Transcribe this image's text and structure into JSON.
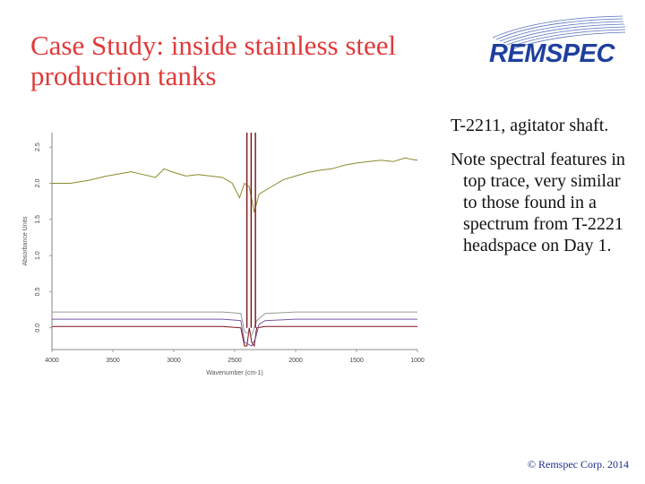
{
  "slide": {
    "title": "Case Study: inside stainless steel production tanks",
    "logo_text": "REMSPEC",
    "notes": [
      "T-2211, agitator shaft.",
      "Note spectral features in top trace, very similar to those found in a spectrum from T-2221 headspace on Day 1."
    ],
    "footer": "© Remspec Corp. 2014"
  },
  "colors": {
    "title": "#e03a3a",
    "logo": "#1e3f9e",
    "footer": "#1d2f8a",
    "series_top": "#8a8a2a",
    "series_red": "#7a0f14",
    "series_purple": "#7a5aa0",
    "series_grey": "#9a9a9a"
  },
  "chart_data": {
    "type": "line",
    "xlabel": "Wavenumber (cm-1)",
    "ylabel": "Absorbance Units",
    "xlim": [
      4000,
      1000
    ],
    "ylim": [
      -0.3,
      2.7
    ],
    "x_ticks": [
      "4000",
      "3500",
      "3000",
      "2500",
      "2000",
      "1500",
      "1000"
    ],
    "y_ticks": [
      "0.0",
      "0.5",
      "1.0",
      "1.5",
      "2.0",
      "2.5"
    ],
    "series": [
      {
        "color": "#8a8a2a",
        "points": [
          [
            4000,
            2.0
          ],
          [
            3850,
            2.0
          ],
          [
            3700,
            2.04
          ],
          [
            3550,
            2.1
          ],
          [
            3450,
            2.13
          ],
          [
            3350,
            2.16
          ],
          [
            3250,
            2.12
          ],
          [
            3150,
            2.08
          ],
          [
            3080,
            2.2
          ],
          [
            3000,
            2.15
          ],
          [
            2900,
            2.1
          ],
          [
            2800,
            2.12
          ],
          [
            2700,
            2.1
          ],
          [
            2600,
            2.08
          ],
          [
            2520,
            2.0
          ],
          [
            2460,
            1.8
          ],
          [
            2420,
            2.0
          ],
          [
            2380,
            1.95
          ],
          [
            2340,
            1.6
          ],
          [
            2300,
            1.85
          ],
          [
            2200,
            1.95
          ],
          [
            2100,
            2.05
          ],
          [
            2000,
            2.1
          ],
          [
            1900,
            2.15
          ],
          [
            1800,
            2.18
          ],
          [
            1700,
            2.2
          ],
          [
            1600,
            2.25
          ],
          [
            1500,
            2.28
          ],
          [
            1400,
            2.3
          ],
          [
            1300,
            2.32
          ],
          [
            1200,
            2.3
          ],
          [
            1100,
            2.35
          ],
          [
            1050,
            2.33
          ],
          [
            1000,
            2.32
          ]
        ]
      },
      {
        "color": "#7a0f14",
        "points": [
          [
            4000,
            0.02
          ],
          [
            3500,
            0.02
          ],
          [
            3000,
            0.02
          ],
          [
            2600,
            0.02
          ],
          [
            2450,
            0.0
          ],
          [
            2420,
            -0.25
          ],
          [
            2400,
            -0.25
          ],
          [
            2380,
            0.0
          ],
          [
            2360,
            -0.2
          ],
          [
            2340,
            -0.25
          ],
          [
            2320,
            0.0
          ],
          [
            2250,
            0.02
          ],
          [
            2000,
            0.02
          ],
          [
            1500,
            0.02
          ],
          [
            1000,
            0.02
          ]
        ]
      },
      {
        "color": "#7a5aa0",
        "points": [
          [
            4000,
            0.12
          ],
          [
            3500,
            0.12
          ],
          [
            3000,
            0.12
          ],
          [
            2600,
            0.12
          ],
          [
            2450,
            0.1
          ],
          [
            2420,
            -0.2
          ],
          [
            2360,
            -0.25
          ],
          [
            2330,
            -0.15
          ],
          [
            2300,
            0.05
          ],
          [
            2250,
            0.1
          ],
          [
            2000,
            0.12
          ],
          [
            1500,
            0.12
          ],
          [
            1000,
            0.12
          ]
        ]
      },
      {
        "color": "#9a9a9a",
        "points": [
          [
            4000,
            0.22
          ],
          [
            3500,
            0.22
          ],
          [
            3000,
            0.22
          ],
          [
            2600,
            0.22
          ],
          [
            2450,
            0.2
          ],
          [
            2420,
            -0.05
          ],
          [
            2360,
            -0.1
          ],
          [
            2320,
            0.1
          ],
          [
            2250,
            0.2
          ],
          [
            2000,
            0.22
          ],
          [
            1500,
            0.22
          ],
          [
            1000,
            0.22
          ]
        ]
      }
    ],
    "clipped_band": [
      2400,
      2330
    ]
  }
}
